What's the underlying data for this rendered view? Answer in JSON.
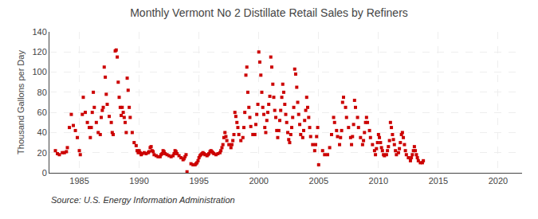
{
  "chart_data": {
    "type": "scatter",
    "title": "Monthly Vermont No 2 Distillate Retail Sales by Refiners",
    "ylabel": "Thousand Gallons per Day",
    "annotations": [
      "Source: U.S. Energy Information Administration"
    ],
    "color": "#cc0000",
    "marker": "square",
    "grid": true,
    "xlim": [
      1982.5,
      2022
    ],
    "ylim": [
      0,
      140
    ],
    "xticks": [
      1985,
      1990,
      1995,
      2000,
      2005,
      2010,
      2015,
      2020
    ],
    "yticks": [
      0,
      20,
      40,
      60,
      80,
      100,
      120,
      140
    ],
    "x": [
      1983.0,
      1983.17,
      1983.33,
      1983.58,
      1983.75,
      1983.92,
      1984.0,
      1984.17,
      1984.33,
      1984.5,
      1984.67,
      1984.83,
      1985.0,
      1985.08,
      1985.25,
      1985.33,
      1985.5,
      1985.67,
      1985.83,
      1985.92,
      1986.0,
      1986.08,
      1986.17,
      1986.25,
      1986.42,
      1986.58,
      1986.75,
      1986.83,
      1986.92,
      1987.0,
      1987.08,
      1987.17,
      1987.25,
      1987.33,
      1987.5,
      1987.67,
      1987.75,
      1987.83,
      1988.0,
      1988.08,
      1988.17,
      1988.25,
      1988.33,
      1988.42,
      1988.5,
      1988.58,
      1988.67,
      1988.75,
      1988.83,
      1988.92,
      1989.0,
      1989.08,
      1989.17,
      1989.25,
      1989.42,
      1989.58,
      1989.75,
      1989.83,
      1989.92,
      1990.0,
      1990.08,
      1990.17,
      1990.25,
      1990.42,
      1990.58,
      1990.75,
      1990.83,
      1990.92,
      1991.0,
      1991.08,
      1991.17,
      1991.25,
      1991.42,
      1991.58,
      1991.75,
      1991.83,
      1991.92,
      1992.0,
      1992.08,
      1992.17,
      1992.33,
      1992.5,
      1992.67,
      1992.83,
      1992.92,
      1993.0,
      1993.08,
      1993.17,
      1993.33,
      1993.5,
      1993.67,
      1993.75,
      1993.83,
      1993.92,
      1994.0,
      1994.33,
      1994.5,
      1994.67,
      1994.75,
      1994.83,
      1994.92,
      1995.0,
      1995.08,
      1995.17,
      1995.25,
      1995.33,
      1995.42,
      1995.5,
      1995.67,
      1995.75,
      1995.83,
      1995.92,
      1996.0,
      1996.08,
      1996.17,
      1996.25,
      1996.42,
      1996.58,
      1996.75,
      1996.83,
      1996.92,
      1997.0,
      1997.08,
      1997.17,
      1997.25,
      1997.33,
      1997.5,
      1997.67,
      1997.75,
      1997.83,
      1997.92,
      1998.0,
      1998.08,
      1998.17,
      1998.25,
      1998.33,
      1998.5,
      1998.67,
      1998.75,
      1998.83,
      1998.92,
      1999.0,
      1999.08,
      1999.17,
      1999.25,
      1999.33,
      1999.5,
      1999.67,
      1999.75,
      1999.83,
      1999.92,
      2000.0,
      2000.08,
      2000.17,
      2000.25,
      2000.33,
      2000.42,
      2000.5,
      2000.58,
      2000.67,
      2000.75,
      2000.83,
      2000.92,
      2001.0,
      2001.08,
      2001.17,
      2001.25,
      2001.33,
      2001.42,
      2001.5,
      2001.58,
      2001.67,
      2001.75,
      2001.83,
      2001.92,
      2002.0,
      2002.08,
      2002.17,
      2002.25,
      2002.33,
      2002.42,
      2002.5,
      2002.58,
      2002.67,
      2002.75,
      2002.83,
      2002.92,
      2003.0,
      2003.08,
      2003.17,
      2003.25,
      2003.33,
      2003.42,
      2003.5,
      2003.67,
      2003.75,
      2003.83,
      2003.92,
      2004.0,
      2004.08,
      2004.17,
      2004.25,
      2004.33,
      2004.5,
      2004.67,
      2004.75,
      2004.83,
      2004.92,
      2005.0,
      2005.33,
      2005.5,
      2005.75,
      2005.92,
      2006.08,
      2006.25,
      2006.33,
      2006.5,
      2006.58,
      2006.75,
      2006.83,
      2006.92,
      2007.0,
      2007.08,
      2007.25,
      2007.33,
      2007.5,
      2007.67,
      2007.75,
      2007.83,
      2007.92,
      2008.0,
      2008.08,
      2008.25,
      2008.33,
      2008.5,
      2008.67,
      2008.75,
      2008.83,
      2008.92,
      2009.0,
      2009.08,
      2009.25,
      2009.33,
      2009.5,
      2009.67,
      2009.75,
      2009.83,
      2009.92,
      2010.0,
      2010.08,
      2010.17,
      2010.25,
      2010.33,
      2010.42,
      2010.5,
      2010.67,
      2010.75,
      2010.83,
      2010.92,
      2011.0,
      2011.08,
      2011.17,
      2011.25,
      2011.33,
      2011.42,
      2011.5,
      2011.67,
      2011.75,
      2011.83,
      2011.92,
      2012.0,
      2012.08,
      2012.17,
      2012.25,
      2012.33,
      2012.5,
      2012.67,
      2012.75,
      2012.83,
      2012.92,
      2013.0,
      2013.08,
      2013.17,
      2013.25,
      2013.33,
      2013.5,
      2013.67,
      2013.75
    ],
    "values": [
      22,
      19,
      18,
      20,
      20,
      21,
      25,
      45,
      58,
      47,
      42,
      35,
      22,
      18,
      58,
      75,
      60,
      50,
      45,
      35,
      45,
      60,
      80,
      65,
      50,
      40,
      38,
      55,
      62,
      65,
      105,
      95,
      78,
      68,
      56,
      50,
      40,
      38,
      121,
      122,
      115,
      90,
      75,
      65,
      57,
      65,
      60,
      55,
      50,
      40,
      94,
      82,
      65,
      55,
      40,
      30,
      27,
      22,
      20,
      22,
      20,
      18,
      19,
      20,
      19,
      20,
      21,
      25,
      26,
      22,
      21,
      18,
      17,
      16,
      16,
      18,
      19,
      22,
      21,
      19,
      18,
      17,
      16,
      17,
      19,
      22,
      21,
      19,
      17,
      15,
      13,
      14,
      16,
      18,
      1,
      9,
      8,
      8,
      9,
      10,
      12,
      15,
      17,
      18,
      19,
      20,
      19,
      18,
      17,
      18,
      19,
      21,
      22,
      21,
      20,
      19,
      18,
      19,
      20,
      22,
      25,
      28,
      35,
      40,
      36,
      32,
      28,
      25,
      28,
      32,
      38,
      60,
      56,
      50,
      45,
      38,
      32,
      35,
      45,
      60,
      97,
      105,
      80,
      65,
      55,
      46,
      38,
      38,
      48,
      58,
      68,
      120,
      110,
      97,
      80,
      65,
      58,
      45,
      40,
      52,
      60,
      68,
      76,
      115,
      105,
      88,
      75,
      62,
      55,
      42,
      35,
      42,
      52,
      62,
      75,
      88,
      80,
      68,
      58,
      50,
      40,
      33,
      30,
      38,
      45,
      55,
      65,
      103,
      98,
      85,
      70,
      58,
      48,
      38,
      35,
      42,
      52,
      62,
      75,
      65,
      55,
      45,
      36,
      28,
      22,
      28,
      36,
      45,
      8,
      22,
      18,
      18,
      25,
      38,
      55,
      50,
      42,
      36,
      28,
      35,
      42,
      70,
      75,
      65,
      55,
      45,
      35,
      28,
      36,
      48,
      72,
      65,
      55,
      45,
      35,
      28,
      32,
      40,
      50,
      55,
      50,
      42,
      35,
      28,
      22,
      18,
      24,
      30,
      38,
      35,
      30,
      25,
      22,
      18,
      17,
      18,
      22,
      26,
      32,
      50,
      45,
      38,
      33,
      28,
      22,
      18,
      20,
      24,
      30,
      38,
      40,
      35,
      28,
      22,
      18,
      15,
      12,
      15,
      18,
      22,
      26,
      22,
      18,
      15,
      12,
      10,
      10,
      12
    ]
  }
}
